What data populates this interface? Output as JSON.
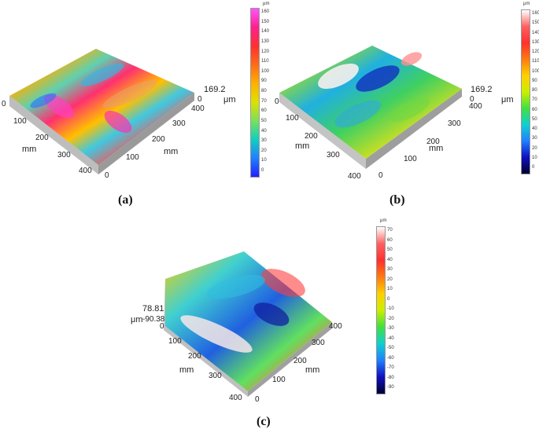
{
  "panels": [
    {
      "caption": "(a)",
      "zmax_label": "169.2",
      "zmin_label": "0",
      "z_unit": "μm",
      "left_unit": "mm",
      "right_unit": "mm",
      "left_ticks": [
        "0",
        "100",
        "200",
        "300",
        "400"
      ],
      "right_ticks": [
        "0",
        "100",
        "200",
        "300",
        "400"
      ],
      "colorbar": {
        "unit": "μm",
        "ticks": [
          "160",
          "150",
          "140",
          "130",
          "120",
          "110",
          "100",
          "90",
          "80",
          "70",
          "60",
          "50",
          "40",
          "30",
          "20",
          "10",
          "0"
        ],
        "gradient": [
          "#ff55ff",
          "#ff1f8f",
          "#ff3030",
          "#ff6a1a",
          "#ffb000",
          "#e0e000",
          "#7be05a",
          "#10d0c0",
          "#2080ff",
          "#2020ff"
        ]
      }
    },
    {
      "caption": "(b)",
      "zmax_label": "169.2",
      "zmin_label": "0",
      "z_unit": "μm",
      "left_unit": "mm",
      "right_unit": "mm",
      "left_ticks": [
        "0",
        "100",
        "200",
        "300",
        "400"
      ],
      "right_ticks": [
        "0",
        "100",
        "200",
        "300",
        "400"
      ],
      "colorbar": {
        "unit": "μm",
        "ticks": [
          "160",
          "150",
          "140",
          "130",
          "120",
          "110",
          "100",
          "90",
          "80",
          "70",
          "60",
          "50",
          "40",
          "30",
          "20",
          "10",
          "0"
        ],
        "gradient": [
          "#ffffff",
          "#ff6060",
          "#ff3030",
          "#ff7a10",
          "#ffd000",
          "#ccee00",
          "#40e040",
          "#10d0d0",
          "#2080ff",
          "#1010c0",
          "#000030"
        ]
      }
    },
    {
      "caption": "(c)",
      "zmax_label": "78.81",
      "zmin_label": "-90.38",
      "z_unit": "μm",
      "left_unit": "mm",
      "right_unit": "mm",
      "left_ticks": [
        "0",
        "100",
        "200",
        "300",
        "400"
      ],
      "right_ticks": [
        "0",
        "100",
        "200",
        "300",
        "400"
      ],
      "colorbar": {
        "unit": "μm",
        "ticks": [
          "70",
          "60",
          "50",
          "40",
          "30",
          "20",
          "10",
          "0",
          "-10",
          "-20",
          "-30",
          "-40",
          "-50",
          "-60",
          "-70",
          "-80",
          "-90"
        ],
        "gradient": [
          "#ffffff",
          "#ff6060",
          "#ff3030",
          "#ff7a10",
          "#ffd000",
          "#ccee00",
          "#40e040",
          "#10d0d0",
          "#2080ff",
          "#1010c0",
          "#000030"
        ]
      }
    }
  ]
}
